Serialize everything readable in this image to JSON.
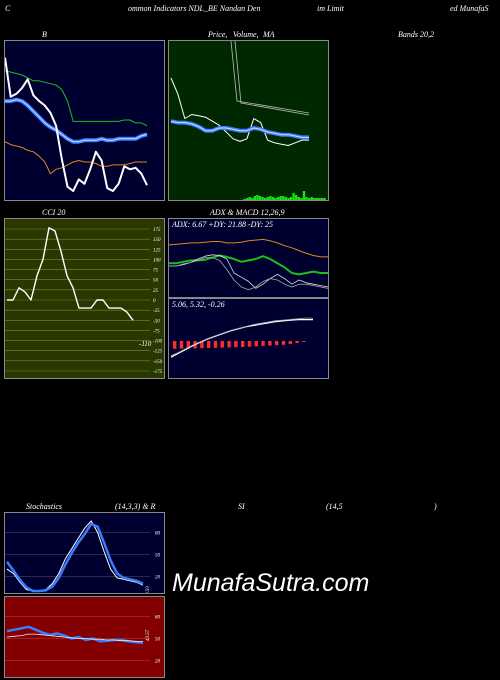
{
  "header": {
    "seg1": "C",
    "seg2": "ommon  Indicators NDL_BE Nandan  Den",
    "seg3": "im Limit",
    "seg4": "ed MunafaS"
  },
  "panels": {
    "bollinger": {
      "label": "B",
      "right_label": "Bands 20,2"
    },
    "price": {
      "label1": "Price,",
      "label2": "Volume,",
      "label3": "MA"
    },
    "cci": {
      "label": "CCI 20",
      "value_label": "-110"
    },
    "adx": {
      "title": "ADX  & MACD 12,26,9",
      "readout": "ADX: 6.67  +DY: 21.88  -DY: 25"
    },
    "macd": {
      "readout": "5.06,  5.32,  -0.26"
    },
    "stoch": {
      "title_left": "Stochastics",
      "title_mid": "(14,3,3) & R",
      "title_mid2": "SI",
      "title_right": "(14,5",
      "title_end": ")",
      "value_label": "8.59"
    },
    "rsi": {
      "value_label": "43.57"
    }
  },
  "watermark": "MunafaSutra.com",
  "colors": {
    "navy": "#000030",
    "dark_green": "#002800",
    "olive": "#283800",
    "maroon": "#840000",
    "blue_line": "#3a7bff",
    "green_line": "#18c018",
    "orange_line": "#d9881a"
  },
  "chart_data": [
    {
      "type": "line",
      "name_ref": "bollinger",
      "ylim": [
        0,
        100
      ],
      "series": [
        {
          "values": [
            8,
            35,
            33,
            29,
            23,
            34,
            38,
            41,
            46,
            55,
            78,
            97,
            100,
            92,
            95,
            85,
            73,
            79,
            98,
            100,
            95,
            83,
            85,
            84,
            88,
            96
          ],
          "kind": "price"
        },
        {
          "values": [
            17,
            18,
            19,
            20,
            22,
            24,
            24,
            25,
            26,
            27,
            30,
            38,
            52,
            52,
            52,
            52,
            52,
            52,
            52,
            52,
            52,
            51,
            51,
            53,
            53,
            55
          ],
          "kind": "upper"
        },
        {
          "values": [
            38,
            38,
            37,
            38,
            41,
            45,
            49,
            53,
            56,
            58,
            61,
            64,
            66,
            66,
            65,
            65,
            65,
            64,
            65,
            65,
            64,
            64,
            64,
            64,
            62,
            61
          ],
          "kind": "mid"
        },
        {
          "values": [
            66,
            68,
            69,
            70,
            72,
            73,
            76,
            80,
            88,
            85,
            84,
            82,
            80,
            79,
            80,
            80,
            81,
            83,
            83,
            82,
            82,
            82,
            81,
            80,
            80,
            80
          ],
          "kind": "lower"
        }
      ]
    },
    {
      "type": "line",
      "name_ref": "price_volume_ma",
      "ylim": [
        0,
        100
      ],
      "series": [
        {
          "values": [
            20,
            32,
            50,
            47,
            48,
            49,
            52,
            55,
            60,
            65,
            67,
            65,
            50,
            53,
            66,
            68,
            69,
            70,
            68,
            66,
            66
          ],
          "kind": "price"
        },
        {
          "values": [
            52,
            53,
            53,
            54,
            56,
            59,
            59,
            57,
            57,
            58,
            59,
            59,
            57,
            58,
            60,
            61,
            62,
            62,
            63,
            64,
            64
          ],
          "kind": "ma"
        },
        {
          "values": [
            0,
            0,
            0,
            0,
            0,
            0,
            0,
            0,
            0,
            0,
            0,
            0,
            0,
            0,
            0,
            0,
            0,
            0,
            0,
            0,
            0,
            0,
            0,
            0,
            0,
            0,
            0,
            0,
            1,
            2,
            3,
            2,
            4,
            5,
            4,
            3,
            2,
            3,
            4,
            3,
            2,
            3,
            4,
            4,
            3,
            2,
            3,
            7,
            5,
            3,
            2,
            9,
            3,
            2,
            3,
            2,
            2,
            2,
            2,
            2
          ],
          "kind": "volume"
        }
      ]
    },
    {
      "type": "line",
      "name_ref": "cci",
      "ylim": [
        -175,
        175
      ],
      "yticks": [
        175,
        150,
        125,
        100,
        75,
        50,
        25,
        0,
        -25,
        -50,
        -75,
        -100,
        -125,
        -150,
        -175
      ],
      "series": [
        {
          "values": [
            0,
            0,
            30,
            20,
            0,
            60,
            100,
            178,
            170,
            120,
            60,
            30,
            -20,
            -20,
            -20,
            0,
            0,
            -20,
            -20,
            -20,
            -30,
            -50
          ],
          "kind": "cci"
        }
      ]
    },
    {
      "type": "line",
      "name_ref": "adx",
      "ylim": [
        0,
        100
      ],
      "series": [
        {
          "values": [
            70,
            71,
            72,
            73,
            73,
            74,
            75,
            75,
            73,
            73,
            74,
            76,
            77,
            78,
            76,
            73,
            69,
            66,
            62,
            58,
            55,
            53,
            53
          ],
          "kind": "adx_orange"
        },
        {
          "values": [
            44,
            44,
            46,
            48,
            48,
            49,
            52,
            55,
            53,
            50,
            46,
            48,
            50,
            54,
            50,
            44,
            38,
            30,
            28,
            30,
            32,
            30,
            30
          ],
          "kind": "plus_di"
        },
        {
          "values": [
            40,
            40,
            42,
            45,
            50,
            54,
            56,
            55,
            50,
            30,
            24,
            18,
            8,
            14,
            22,
            28,
            22,
            14,
            20,
            16,
            14,
            12,
            10
          ],
          "kind": "minus_di"
        },
        {
          "values": [
            40,
            40,
            43,
            45,
            48,
            52,
            52,
            48,
            35,
            20,
            10,
            6,
            10,
            18,
            22,
            20,
            14,
            10,
            14,
            14,
            12,
            10,
            8
          ],
          "kind": "adx_white"
        }
      ]
    },
    {
      "type": "line",
      "name_ref": "macd",
      "ylim": [
        0,
        100
      ],
      "series": [
        {
          "values": [
            30,
            36,
            42,
            48,
            53,
            58,
            62,
            66,
            70,
            73,
            76,
            78,
            80,
            82,
            84,
            85,
            86,
            87,
            87,
            87
          ],
          "kind": "macd"
        },
        {
          "values": [
            28,
            33,
            39,
            45,
            50,
            55,
            59,
            63,
            67,
            70,
            73,
            76,
            78,
            80,
            82,
            83,
            84,
            85,
            86,
            86
          ],
          "kind": "signal"
        },
        {
          "values": [
            78,
            76,
            75,
            73,
            72,
            70,
            68,
            66,
            64,
            62,
            60,
            57,
            54,
            50,
            46,
            42,
            38,
            30,
            20,
            10
          ],
          "kind": "histogram"
        }
      ]
    },
    {
      "type": "line",
      "name_ref": "stochastics",
      "ylim": [
        0,
        100
      ],
      "yticks": [
        80,
        50,
        20
      ],
      "series": [
        {
          "values": [
            30,
            24,
            12,
            2,
            0,
            0,
            2,
            10,
            24,
            44,
            58,
            72,
            86,
            96,
            80,
            54,
            30,
            18,
            16,
            14,
            12,
            8
          ],
          "kind": "k"
        },
        {
          "values": [
            40,
            28,
            15,
            5,
            0,
            0,
            1,
            6,
            18,
            36,
            52,
            66,
            78,
            92,
            88,
            66,
            42,
            24,
            18,
            16,
            14,
            10
          ],
          "kind": "d"
        }
      ]
    },
    {
      "type": "line",
      "name_ref": "rsi",
      "ylim": [
        0,
        100
      ],
      "yticks": [
        80,
        50,
        20
      ],
      "series": [
        {
          "values": [
            60,
            62,
            64,
            66,
            62,
            58,
            55,
            57,
            54,
            50,
            52,
            48,
            50,
            46,
            47,
            48,
            48,
            46,
            45,
            44
          ],
          "kind": "rsi"
        },
        {
          "values": [
            52,
            53,
            54,
            56,
            56,
            55,
            54,
            53,
            52,
            51,
            50,
            50,
            49,
            49,
            48,
            48,
            47,
            47,
            46,
            46
          ],
          "kind": "avg"
        }
      ]
    }
  ]
}
